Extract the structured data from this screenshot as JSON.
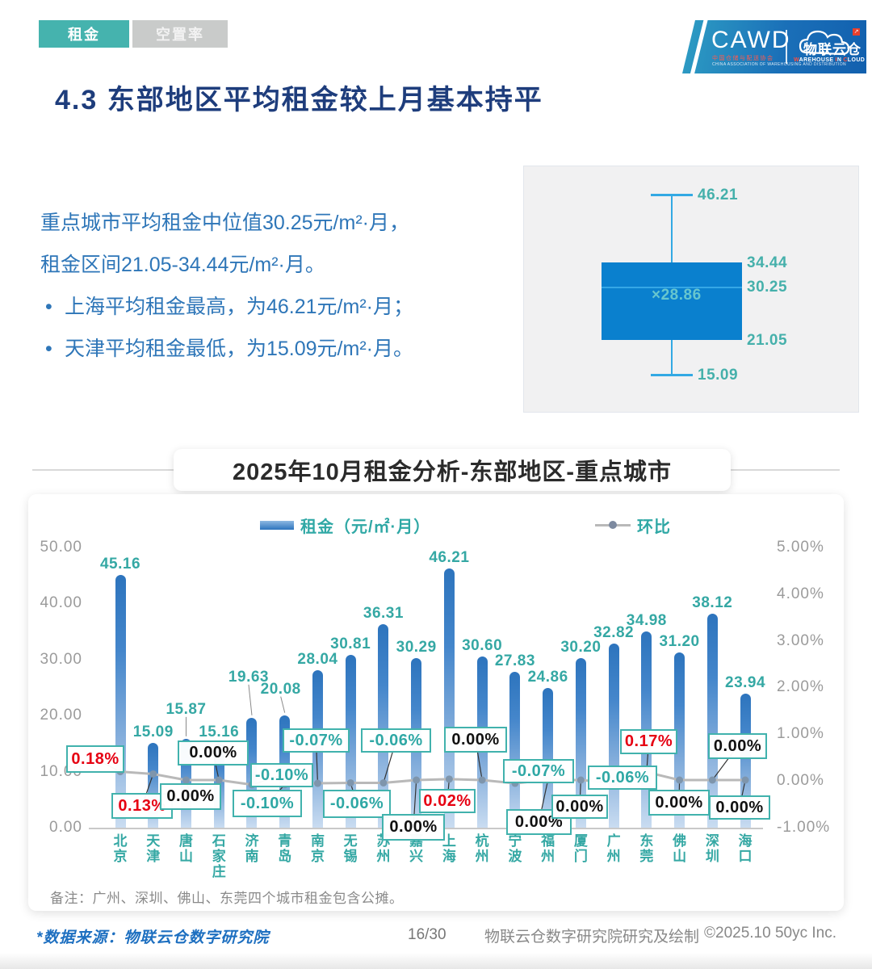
{
  "page": {
    "tabs": [
      {
        "label": "租金",
        "active": true
      },
      {
        "label": "空置率",
        "active": false
      }
    ],
    "logo": {
      "cawd": "CAWD",
      "cawd_sub1": "中国仓储与配送协会",
      "cawd_sub2": "CHINA ASSOCIATION OF WAREHOUSING AND DISTRIBUTION",
      "cloud_name": "物联云仓",
      "cloud_sub_words": [
        "WAREHOUSE",
        "IN",
        "CLOUD"
      ],
      "arrow_glyph": "↗"
    },
    "title": "4.3 东部地区平均租金较上月基本持平",
    "insight": {
      "line1": "重点城市平均租金中位值30.25元/m²·月，",
      "line2": "租金区间21.05-34.44元/m²·月。",
      "bullets": [
        "上海平均租金最高，为46.21元/m²·月；",
        "天津平均租金最低，为15.09元/m²·月。"
      ]
    },
    "section_title": "2025年10月租金分析-东部地区-重点城市",
    "note": "备注：广州、深圳、佛山、东莞四个城市租金包含公摊。",
    "footer": {
      "source": "*数据来源：物联云仓数字研究院",
      "page_no": "16/30",
      "credit": "物联云仓数字研究院研究及绘制",
      "copyright": "©2025.10 50yc Inc."
    }
  },
  "boxplot": {
    "max": 46.21,
    "q3": 34.44,
    "median": 30.25,
    "mean": 28.86,
    "q1": 21.05,
    "min": 15.09,
    "labels": {
      "max": "46.21",
      "q3": "34.44",
      "median": "30.25",
      "q1": "21.05",
      "min": "15.09",
      "mean": "×28.86"
    },
    "box_color": "#0a80ce",
    "whisker_color": "#33a9e4",
    "label_color": "#45b0ab"
  },
  "chart_data": {
    "type": "bar+line",
    "title": "2025年10月租金分析-东部地区-重点城市",
    "legend": [
      {
        "label": "租金（元/㎡·月）",
        "marker": "bar"
      },
      {
        "label": "环比",
        "marker": "line"
      }
    ],
    "categories": [
      "北京",
      "天津",
      "唐山",
      "石家庄",
      "济南",
      "青岛",
      "南京",
      "无锡",
      "苏州",
      "嘉兴",
      "上海",
      "杭州",
      "宁波",
      "福州",
      "厦门",
      "广州",
      "东莞",
      "佛山",
      "深圳",
      "海口"
    ],
    "series": [
      {
        "name": "租金（元/㎡·月）",
        "type": "bar",
        "values": [
          45.16,
          15.09,
          15.87,
          15.16,
          19.63,
          20.08,
          28.04,
          30.81,
          36.31,
          30.29,
          46.21,
          30.6,
          27.83,
          24.86,
          30.2,
          32.82,
          34.98,
          31.2,
          38.12,
          23.94
        ],
        "value_labels": [
          "45.16",
          "15.09",
          "15.87",
          "15.16",
          "19.63",
          "20.08",
          "28.04",
          "30.81",
          "36.31",
          "30.29",
          "46.21",
          "30.60",
          "27.83",
          "24.86",
          "30.20",
          "32.82",
          "34.98",
          "31.20",
          "38.12",
          "23.94"
        ]
      },
      {
        "name": "环比",
        "type": "line",
        "values_pct": [
          0.18,
          0.13,
          0.0,
          0.0,
          -0.1,
          -0.1,
          -0.07,
          -0.06,
          -0.06,
          0.0,
          0.02,
          0.0,
          -0.07,
          0.0,
          0.0,
          -0.06,
          0.17,
          0.0,
          0.0,
          0.0
        ],
        "labels": [
          "0.18%",
          "0.13%",
          "0.00%",
          "0.00%",
          "-0.10%",
          "-0.10%",
          "-0.07%",
          "-0.06%",
          "-0.06%",
          "0.00%",
          "0.02%",
          "0.00%",
          "-0.07%",
          "0.00%",
          "0.00%",
          "-0.06%",
          "0.17%",
          "0.00%",
          "0.00%",
          "0.00%"
        ],
        "label_colors": [
          "red",
          "red",
          "black",
          "black",
          "teal",
          "teal",
          "teal",
          "teal",
          "teal",
          "black",
          "red",
          "black",
          "teal",
          "black",
          "black",
          "teal",
          "red",
          "black",
          "black",
          "black"
        ]
      }
    ],
    "y_left": {
      "ticks": [
        "50.00",
        "40.00",
        "30.00",
        "20.00",
        "10.00",
        "0.00"
      ],
      "min": 0,
      "max": 50
    },
    "y_right": {
      "ticks": [
        "5.00%",
        "4.00%",
        "3.00%",
        "2.00%",
        "1.00%",
        "0.00%",
        "-1.00%"
      ],
      "min": -1,
      "max": 5
    },
    "grid": false,
    "legend_position": "top"
  },
  "colors": {
    "accent_teal": "#2fa8a5",
    "callout_border": "#41b2ad",
    "mom_red": "#e60012",
    "mom_black": "#111111",
    "mom_teal": "#2fa8a5",
    "bar_top": "#2d74bd",
    "bar_bottom": "#c9dcf1",
    "line_gray": "#b9b9b9",
    "dot_gray_blue": "#7e95ac",
    "title_navy": "#1e3d7c",
    "body_blue": "#2e76b8"
  }
}
